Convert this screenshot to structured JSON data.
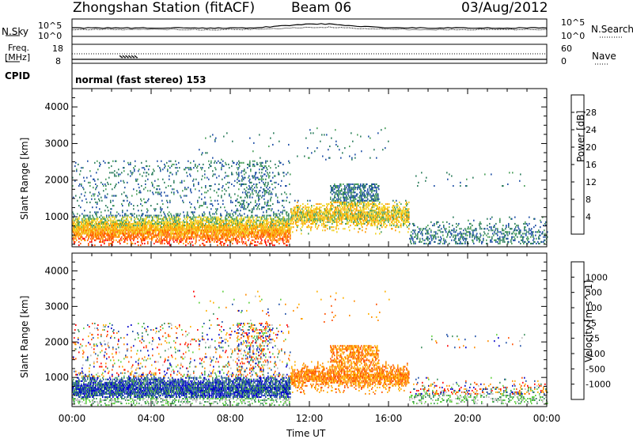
{
  "header": {
    "station_title": "Zhongshan Station (fitACF)",
    "beam": "Beam 06",
    "date": "03/Aug/2012"
  },
  "noise_panel": {
    "left_label": "N.Sky",
    "right_label": "N.Search",
    "left_ticks": [
      "10^5",
      "10^0"
    ],
    "right_ticks": [
      "10^5",
      "10^0"
    ]
  },
  "freq_panel": {
    "left_label_line1": "Freq.",
    "left_label_line2": "[MHz]",
    "left_ticks": [
      "18",
      "8"
    ],
    "right_ticks": [
      "60",
      "0"
    ],
    "right_label": "Nave"
  },
  "cpid": {
    "label": "CPID",
    "value": "normal (fast stereo) 153"
  },
  "colors": {
    "power_scale": [
      "#0000ff",
      "#1f4fa6",
      "#2f7f5f",
      "#4aa05a",
      "#f0d020",
      "#ff9a00",
      "#ff5a00",
      "#ff0000"
    ],
    "velocity_scale": [
      "#ff0000",
      "#ff5000",
      "#ff8c00",
      "#ffb000",
      "#bebebe",
      "#5fd040",
      "#3c8f5c",
      "#1f4fa6",
      "#0000c8"
    ]
  },
  "chart_data": [
    {
      "type": "heatmap",
      "name": "power",
      "ylabel": "Slant Range [km]",
      "colorbar_label": "Power [dB]",
      "colorbar_ticks": [
        "4",
        "8",
        "12",
        "16",
        "20",
        "24",
        "28"
      ],
      "x_ticks": [
        "00:00",
        "04:00",
        "08:00",
        "12:00",
        "16:00",
        "20:00",
        "00:00"
      ],
      "y_ticks": [
        "1000",
        "2000",
        "3000",
        "4000"
      ],
      "ylim": [
        180,
        4500
      ],
      "xlim": [
        0,
        24
      ]
    },
    {
      "type": "heatmap",
      "name": "velocity",
      "ylabel": "Slant Range [km]",
      "colorbar_label": "Velocity [m s^-1]",
      "colorbar_ticks": [
        "-1000",
        "-500",
        "-100",
        "-25",
        "25",
        "100",
        "500",
        "1000"
      ],
      "x_ticks": [
        "00:00",
        "04:00",
        "08:00",
        "12:00",
        "16:00",
        "20:00",
        "00:00"
      ],
      "y_ticks": [
        "1000",
        "2000",
        "3000",
        "4000"
      ],
      "ylim": [
        180,
        4500
      ],
      "xlim": [
        0,
        24
      ],
      "xlabel": "Time UT"
    }
  ]
}
